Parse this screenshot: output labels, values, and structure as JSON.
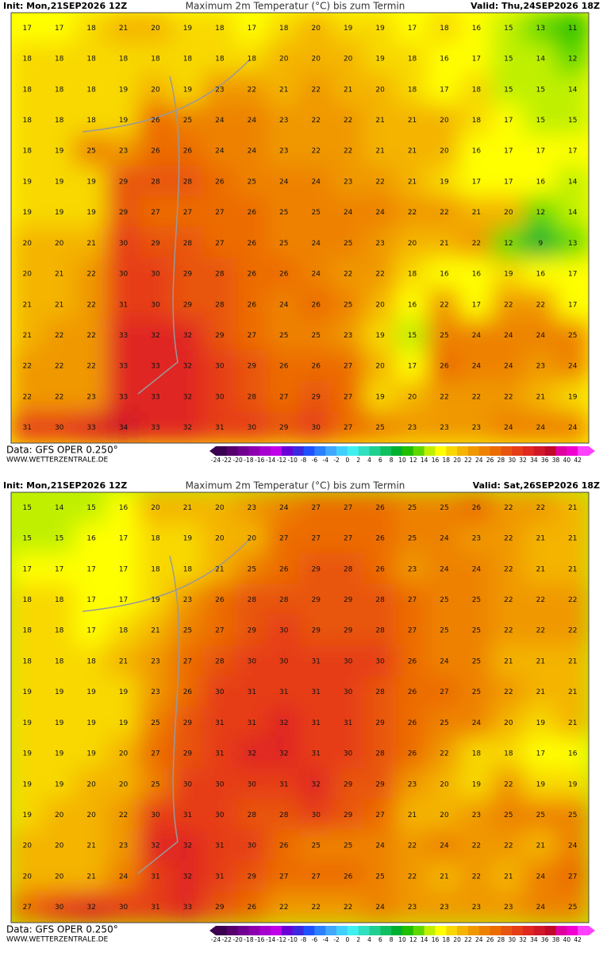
{
  "panels": [
    {
      "header": {
        "init": "Init: Mon,21SEP2026 12Z",
        "title": "Maximum 2m Temperatur (°C) bis zum Termin",
        "valid": "Valid: Thu,24SEP2026 18Z"
      },
      "grid": [
        [
          17,
          17,
          18,
          21,
          20,
          19,
          18,
          17,
          18,
          20,
          19,
          19,
          17,
          18,
          16,
          15,
          13,
          11
        ],
        [
          18,
          18,
          18,
          18,
          18,
          18,
          18,
          18,
          20,
          20,
          20,
          19,
          18,
          16,
          17,
          15,
          14,
          12
        ],
        [
          18,
          18,
          18,
          19,
          20,
          19,
          23,
          22,
          21,
          22,
          21,
          20,
          18,
          17,
          18,
          15,
          15,
          14
        ],
        [
          18,
          18,
          18,
          19,
          26,
          25,
          24,
          24,
          23,
          22,
          22,
          21,
          21,
          20,
          18,
          17,
          15,
          15
        ],
        [
          18,
          19,
          25,
          23,
          26,
          26,
          24,
          24,
          23,
          22,
          22,
          21,
          21,
          20,
          16,
          17,
          17,
          17
        ],
        [
          19,
          19,
          19,
          29,
          28,
          28,
          26,
          25,
          24,
          24,
          23,
          22,
          21,
          19,
          17,
          17,
          16,
          14
        ],
        [
          19,
          19,
          19,
          29,
          27,
          27,
          27,
          26,
          25,
          25,
          24,
          24,
          22,
          22,
          21,
          20,
          12,
          14
        ],
        [
          20,
          20,
          21,
          30,
          29,
          28,
          27,
          26,
          25,
          24,
          25,
          23,
          20,
          21,
          22,
          12,
          9,
          13
        ],
        [
          20,
          21,
          22,
          30,
          30,
          29,
          28,
          26,
          26,
          24,
          22,
          22,
          18,
          16,
          16,
          19,
          16,
          17
        ],
        [
          21,
          21,
          22,
          31,
          30,
          29,
          28,
          26,
          24,
          26,
          25,
          20,
          16,
          22,
          17,
          22,
          22,
          17
        ],
        [
          21,
          22,
          22,
          33,
          32,
          32,
          29,
          27,
          25,
          25,
          23,
          19,
          15,
          25,
          24,
          24,
          24,
          25
        ],
        [
          22,
          22,
          22,
          33,
          33,
          32,
          30,
          29,
          26,
          26,
          27,
          20,
          17,
          26,
          24,
          24,
          23,
          24
        ],
        [
          22,
          22,
          23,
          33,
          33,
          32,
          30,
          28,
          27,
          29,
          27,
          19,
          20,
          22,
          22,
          22,
          21,
          19
        ],
        [
          31,
          30,
          33,
          34,
          33,
          32,
          31,
          30,
          29,
          30,
          27,
          25,
          23,
          23,
          23,
          24,
          24,
          24
        ]
      ],
      "footer": {
        "source": "Data: GFS OPER 0.250°",
        "site": "WWW.WETTERZENTRALE.DE"
      }
    },
    {
      "header": {
        "init": "Init: Mon,21SEP2026 12Z",
        "title": "Maximum 2m Temperatur (°C) bis zum Termin",
        "valid": "Valid: Sat,26SEP2026 18Z"
      },
      "grid": [
        [
          15,
          14,
          15,
          16,
          20,
          21,
          20,
          23,
          24,
          27,
          27,
          26,
          25,
          25,
          26,
          22,
          22,
          21
        ],
        [
          15,
          15,
          16,
          17,
          18,
          19,
          20,
          20,
          27,
          27,
          27,
          26,
          25,
          24,
          23,
          22,
          21,
          21
        ],
        [
          17,
          17,
          17,
          17,
          18,
          18,
          21,
          25,
          26,
          29,
          28,
          26,
          23,
          24,
          24,
          22,
          21,
          21
        ],
        [
          18,
          18,
          17,
          17,
          19,
          23,
          26,
          28,
          28,
          29,
          29,
          28,
          27,
          25,
          25,
          22,
          22,
          22
        ],
        [
          18,
          18,
          17,
          18,
          21,
          25,
          27,
          29,
          30,
          29,
          29,
          28,
          27,
          25,
          25,
          22,
          22,
          22
        ],
        [
          18,
          18,
          18,
          21,
          23,
          27,
          28,
          30,
          30,
          31,
          30,
          30,
          26,
          24,
          25,
          21,
          21,
          21
        ],
        [
          19,
          19,
          19,
          19,
          23,
          26,
          30,
          31,
          31,
          31,
          30,
          28,
          26,
          27,
          25,
          22,
          21,
          21
        ],
        [
          19,
          19,
          19,
          19,
          25,
          29,
          31,
          31,
          32,
          31,
          31,
          29,
          26,
          25,
          24,
          20,
          19,
          21
        ],
        [
          19,
          19,
          19,
          20,
          27,
          29,
          31,
          32,
          32,
          31,
          30,
          28,
          26,
          22,
          18,
          18,
          17,
          16
        ],
        [
          19,
          19,
          20,
          20,
          25,
          30,
          30,
          30,
          31,
          32,
          29,
          29,
          23,
          20,
          19,
          22,
          19,
          19
        ],
        [
          19,
          20,
          20,
          22,
          30,
          31,
          30,
          28,
          28,
          30,
          29,
          27,
          21,
          20,
          23,
          25,
          25,
          25
        ],
        [
          20,
          20,
          21,
          23,
          32,
          32,
          31,
          30,
          26,
          25,
          25,
          24,
          22,
          24,
          22,
          22,
          21,
          24
        ],
        [
          20,
          20,
          21,
          24,
          31,
          32,
          31,
          29,
          27,
          27,
          26,
          25,
          22,
          21,
          22,
          21,
          24,
          27
        ],
        [
          27,
          30,
          32,
          30,
          31,
          33,
          29,
          26,
          22,
          22,
          22,
          24,
          23,
          23,
          23,
          23,
          24,
          25
        ]
      ],
      "footer": {
        "source": "Data: GFS OPER 0.250°",
        "site": "WWW.WETTERZENTRALE.DE"
      }
    }
  ],
  "legend": {
    "ticks": [
      -24,
      -22,
      -20,
      -18,
      -16,
      -14,
      -12,
      -10,
      -8,
      -6,
      -4,
      -2,
      0,
      2,
      4,
      6,
      8,
      10,
      12,
      14,
      16,
      18,
      20,
      22,
      24,
      26,
      28,
      30,
      32,
      34,
      36,
      38,
      40,
      42
    ],
    "colors": [
      "#3b0050",
      "#55006e",
      "#700090",
      "#8c00b0",
      "#a800d0",
      "#c000e8",
      "#6a00d8",
      "#3c28e0",
      "#2050ff",
      "#2a80ff",
      "#40a8ff",
      "#40d0ff",
      "#40f0f0",
      "#30e0c0",
      "#20d090",
      "#10c060",
      "#00b030",
      "#20c000",
      "#60d800",
      "#c0f000",
      "#ffff00",
      "#f8d800",
      "#f4b400",
      "#f09800",
      "#ee8200",
      "#ec6c00",
      "#e85410",
      "#e63c18",
      "#e02820",
      "#d01828",
      "#c00828",
      "#e000a0",
      "#f000d0",
      "#ff40ff"
    ]
  }
}
